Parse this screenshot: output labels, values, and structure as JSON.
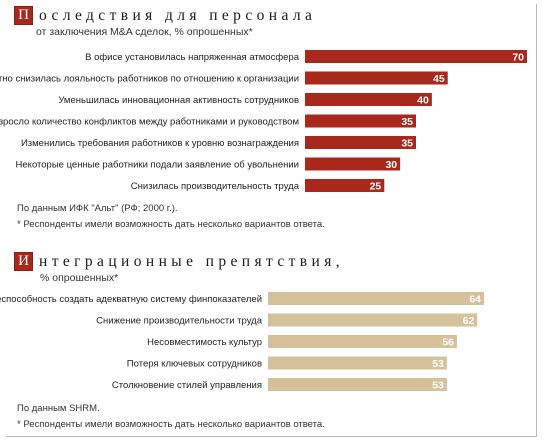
{
  "chart_data": [
    {
      "type": "bar",
      "orientation": "horizontal",
      "title_initial": "П",
      "title_rest": "оследствия для персонала",
      "subtitle": "от заключения M&A сделок, % опрошенных*",
      "categories": [
        "В офисе установилась напряженная атмосфера",
        "Заметно снизилась лояльность работников по отношению к организации",
        "Уменьшилась инновационная активность сотрудников",
        "Возросло количество конфликтов между работниками и руководством",
        "Изменились требования работников к уровню вознаграждения",
        "Некоторые ценные работники подали заявление об увольнении",
        "Снизилась производительность труда"
      ],
      "values": [
        70,
        45,
        40,
        35,
        35,
        30,
        25
      ],
      "value_labels": [
        "70",
        "45",
        "40",
        "35",
        "35",
        "30",
        "25"
      ],
      "xlim": [
        0,
        70
      ],
      "bar_color": "#a8281c",
      "accent_color": "#a8281c",
      "label_color": "#ffffff",
      "label_position": "inside-end",
      "notes": [
        "По данным ИФК \"Альт\" (РФ; 2000 г.).",
        "* Респонденты имели возможность дать несколько вариантов ответа."
      ]
    },
    {
      "type": "bar",
      "orientation": "horizontal",
      "title_initial": "И",
      "title_rest": "нтеграционные препятствия,",
      "subtitle": "% опрошенных*",
      "categories": [
        "Неспособность создать адекватную систему финпоказателей",
        "Снижение производительности труда",
        "Несовместимость культур",
        "Потеря ключевых сотрудников",
        "Столкновение стилей управления"
      ],
      "values": [
        64,
        62,
        56,
        53,
        53
      ],
      "value_labels": [
        "64",
        "62",
        "56",
        "53",
        "53"
      ],
      "xlim": [
        0,
        64
      ],
      "bar_color": "#d6c29a",
      "accent_color": "#a8281c",
      "label_color": "#ffffff",
      "label_position": "inside-end",
      "notes": [
        "По данным SHRM.",
        "* Респонденты имели возможность дать несколько вариантов ответа."
      ]
    }
  ]
}
